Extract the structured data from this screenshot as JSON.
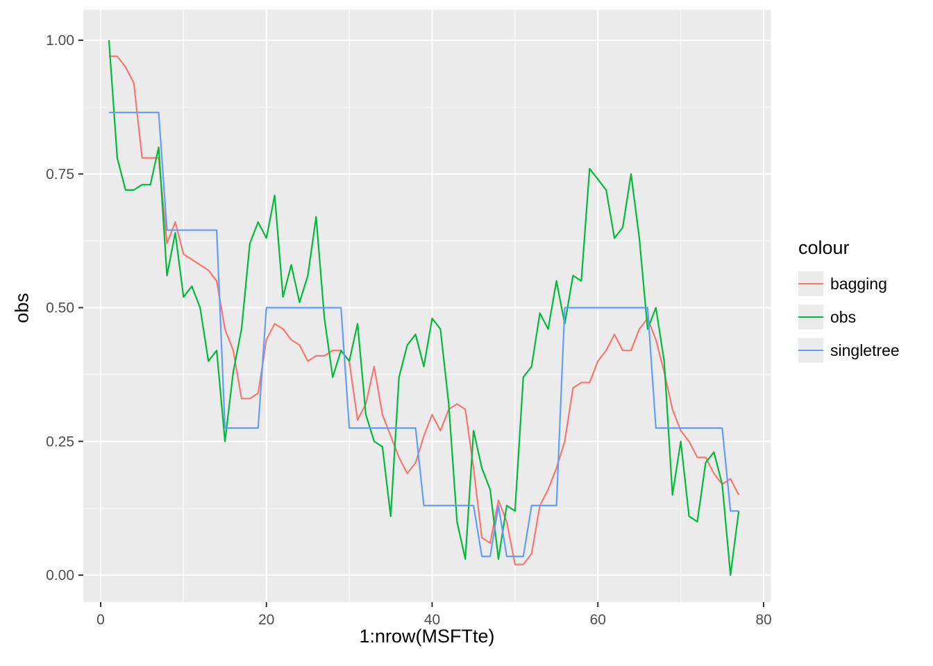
{
  "chart_data": {
    "type": "line",
    "title": "",
    "xlabel": "1:nrow(MSFTte)",
    "ylabel": "obs",
    "legend_title": "colour",
    "legend_position": "right",
    "panel_background": "#EBEBEB",
    "gridline_color": "#FFFFFF",
    "tick_label_color": "#4D4D4D",
    "x_axis": {
      "lim": [
        0,
        80
      ],
      "ticks": [
        0,
        20,
        40,
        60,
        80
      ],
      "tick_labels": [
        "0",
        "20",
        "40",
        "60",
        "80"
      ],
      "minor_ticks": [
        10,
        30,
        50,
        70
      ]
    },
    "y_axis": {
      "lim": [
        0,
        1
      ],
      "ticks": [
        0,
        0.25,
        0.5,
        0.75,
        1
      ],
      "tick_labels": [
        "0.00",
        "0.25",
        "0.50",
        "0.75",
        "1.00"
      ],
      "minor_ticks": [
        0.125,
        0.375,
        0.625,
        0.875
      ]
    },
    "x": [
      1,
      2,
      3,
      4,
      5,
      6,
      7,
      8,
      9,
      10,
      11,
      12,
      13,
      14,
      15,
      16,
      17,
      18,
      19,
      20,
      21,
      22,
      23,
      24,
      25,
      26,
      27,
      28,
      29,
      30,
      31,
      32,
      33,
      34,
      35,
      36,
      37,
      38,
      39,
      40,
      41,
      42,
      43,
      44,
      45,
      46,
      47,
      48,
      49,
      50,
      51,
      52,
      53,
      54,
      55,
      56,
      57,
      58,
      59,
      60,
      61,
      62,
      63,
      64,
      65,
      66,
      67,
      68,
      69,
      70,
      71,
      72,
      73,
      74,
      75,
      76,
      77
    ],
    "series": [
      {
        "name": "bagging",
        "color": "#F8766D",
        "values": [
          0.97,
          0.97,
          0.95,
          0.92,
          0.78,
          0.78,
          0.78,
          0.62,
          0.66,
          0.6,
          0.59,
          0.58,
          0.57,
          0.55,
          0.46,
          0.42,
          0.33,
          0.33,
          0.34,
          0.44,
          0.47,
          0.46,
          0.44,
          0.43,
          0.4,
          0.41,
          0.41,
          0.42,
          0.42,
          0.4,
          0.29,
          0.32,
          0.39,
          0.3,
          0.26,
          0.22,
          0.19,
          0.21,
          0.26,
          0.3,
          0.27,
          0.31,
          0.32,
          0.31,
          0.2,
          0.07,
          0.06,
          0.14,
          0.1,
          0.02,
          0.02,
          0.04,
          0.13,
          0.16,
          0.2,
          0.25,
          0.35,
          0.36,
          0.36,
          0.4,
          0.42,
          0.45,
          0.42,
          0.42,
          0.46,
          0.48,
          0.44,
          0.38,
          0.31,
          0.27,
          0.25,
          0.22,
          0.22,
          0.19,
          0.17,
          0.18,
          0.15
        ]
      },
      {
        "name": "obs",
        "color": "#00BA38",
        "values": [
          1.0,
          0.78,
          0.72,
          0.72,
          0.73,
          0.73,
          0.8,
          0.56,
          0.64,
          0.52,
          0.54,
          0.5,
          0.4,
          0.42,
          0.25,
          0.38,
          0.46,
          0.62,
          0.66,
          0.63,
          0.71,
          0.52,
          0.58,
          0.51,
          0.56,
          0.67,
          0.48,
          0.37,
          0.42,
          0.4,
          0.47,
          0.3,
          0.25,
          0.24,
          0.11,
          0.37,
          0.43,
          0.45,
          0.39,
          0.48,
          0.46,
          0.32,
          0.1,
          0.03,
          0.27,
          0.2,
          0.16,
          0.03,
          0.13,
          0.12,
          0.37,
          0.39,
          0.49,
          0.46,
          0.55,
          0.47,
          0.56,
          0.55,
          0.76,
          0.74,
          0.72,
          0.63,
          0.65,
          0.75,
          0.63,
          0.46,
          0.5,
          0.4,
          0.15,
          0.25,
          0.11,
          0.1,
          0.21,
          0.23,
          0.17,
          0.0,
          0.12
        ]
      },
      {
        "name": "singletree",
        "color": "#619CFF",
        "values": [
          0.865,
          0.865,
          0.865,
          0.865,
          0.865,
          0.865,
          0.865,
          0.645,
          0.645,
          0.645,
          0.645,
          0.645,
          0.645,
          0.645,
          0.275,
          0.275,
          0.275,
          0.275,
          0.275,
          0.5,
          0.5,
          0.5,
          0.5,
          0.5,
          0.5,
          0.5,
          0.5,
          0.5,
          0.5,
          0.275,
          0.275,
          0.275,
          0.275,
          0.275,
          0.275,
          0.275,
          0.275,
          0.275,
          0.13,
          0.13,
          0.13,
          0.13,
          0.13,
          0.13,
          0.13,
          0.035,
          0.035,
          0.13,
          0.035,
          0.035,
          0.035,
          0.13,
          0.13,
          0.13,
          0.13,
          0.5,
          0.5,
          0.5,
          0.5,
          0.5,
          0.5,
          0.5,
          0.5,
          0.5,
          0.5,
          0.5,
          0.275,
          0.275,
          0.275,
          0.275,
          0.275,
          0.275,
          0.275,
          0.275,
          0.275,
          0.12,
          0.12
        ]
      }
    ]
  }
}
